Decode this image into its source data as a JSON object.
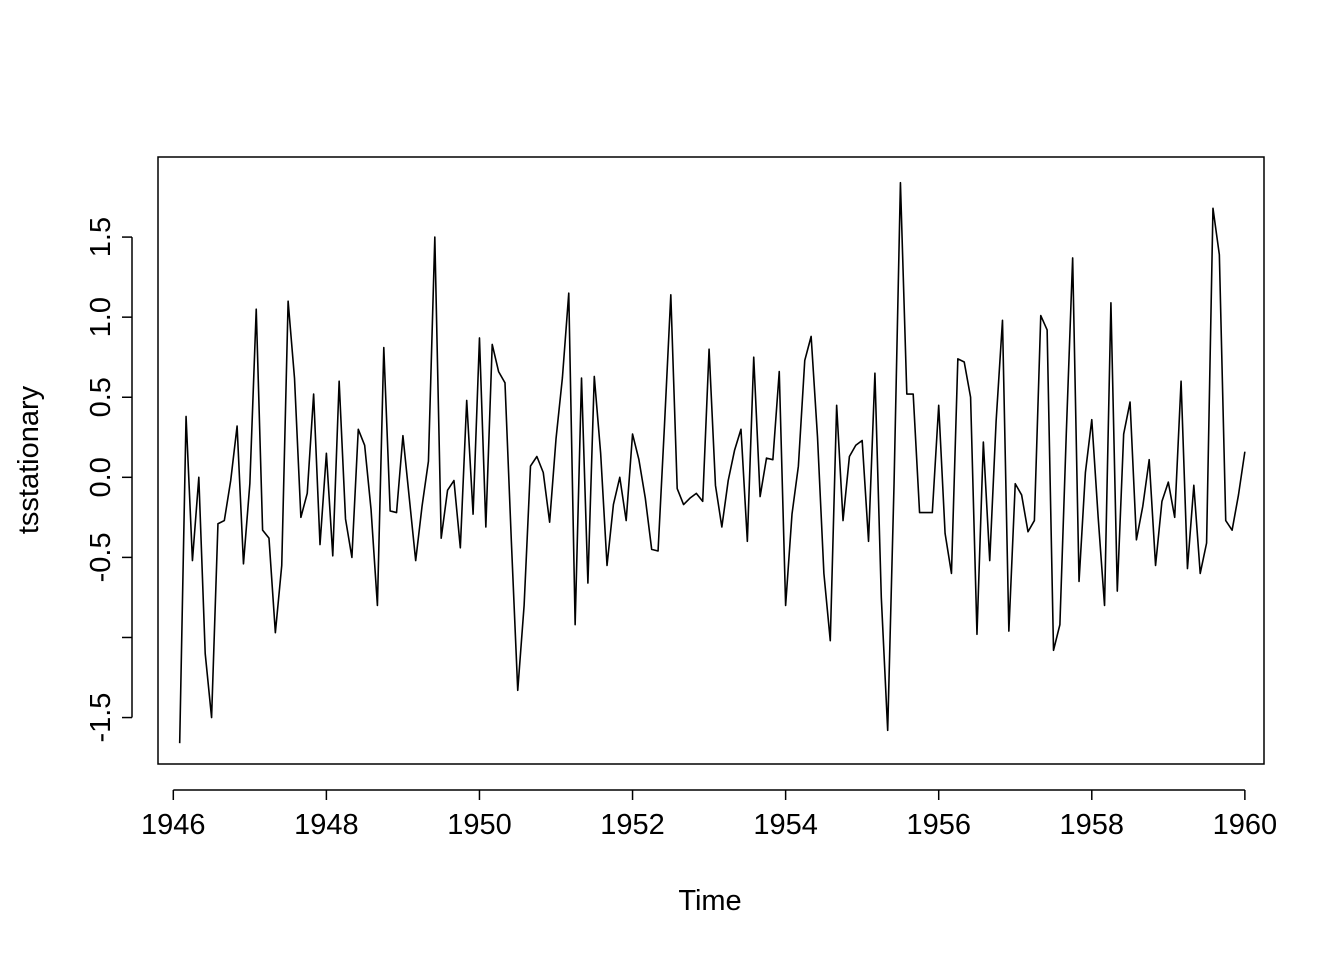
{
  "chart_data": {
    "type": "line",
    "title": "",
    "xlabel": "Time",
    "ylabel": "tsstationary",
    "xlim": [
      1945.8,
      1960.25
    ],
    "ylim": [
      -1.79,
      2.0
    ],
    "x_start": 1946.083333,
    "x_step": 0.083333,
    "x_ticks": [
      1946,
      1948,
      1950,
      1952,
      1954,
      1956,
      1958,
      1960
    ],
    "x_tick_labels": [
      "1946",
      "1948",
      "1950",
      "1952",
      "1954",
      "1956",
      "1958",
      "1960"
    ],
    "y_ticks": [
      -1.5,
      -1.0,
      -0.5,
      0.0,
      0.5,
      1.0,
      1.5
    ],
    "y_tick_labels": [
      "-1.5",
      "",
      "-0.5",
      "0.0",
      "0.5",
      "1.0",
      "1.5"
    ],
    "grid": false,
    "legend": "none",
    "line_color": "#000000",
    "values": [
      -1.66,
      0.38,
      -0.52,
      0.0,
      -1.1,
      -1.5,
      -0.29,
      -0.27,
      -0.02,
      0.32,
      -0.54,
      -0.04,
      1.05,
      -0.33,
      -0.38,
      -0.97,
      -0.55,
      1.1,
      0.62,
      -0.25,
      -0.1,
      0.52,
      -0.42,
      0.15,
      -0.49,
      0.6,
      -0.26,
      -0.5,
      0.3,
      0.2,
      -0.2,
      -0.8,
      0.81,
      -0.21,
      -0.22,
      0.26,
      -0.13,
      -0.52,
      -0.18,
      0.1,
      1.5,
      -0.38,
      -0.08,
      -0.02,
      -0.44,
      0.48,
      -0.23,
      0.87,
      -0.31,
      0.83,
      0.66,
      0.59,
      -0.4,
      -1.33,
      -0.8,
      0.07,
      0.13,
      0.03,
      -0.28,
      0.24,
      0.62,
      1.15,
      -0.92,
      0.62,
      -0.66,
      0.63,
      0.15,
      -0.55,
      -0.17,
      0.0,
      -0.27,
      0.27,
      0.11,
      -0.13,
      -0.45,
      -0.46,
      0.32,
      1.14,
      -0.07,
      -0.17,
      -0.13,
      -0.1,
      -0.15,
      0.8,
      -0.05,
      -0.31,
      -0.02,
      0.17,
      0.3,
      -0.4,
      0.75,
      -0.12,
      0.12,
      0.11,
      0.66,
      -0.8,
      -0.23,
      0.07,
      0.73,
      0.88,
      0.25,
      -0.6,
      -1.02,
      0.45,
      -0.27,
      0.13,
      0.2,
      0.23,
      -0.4,
      0.65,
      -0.75,
      -1.58,
      -0.04,
      1.84,
      0.52,
      0.52,
      -0.22,
      -0.22,
      -0.22,
      0.45,
      -0.35,
      -0.6,
      0.74,
      0.72,
      0.5,
      -0.98,
      0.22,
      -0.52,
      0.35,
      0.98,
      -0.96,
      -0.04,
      -0.11,
      -0.34,
      -0.27,
      1.01,
      0.92,
      -1.08,
      -0.92,
      0.27,
      1.37,
      -0.65,
      0.03,
      0.36,
      -0.25,
      -0.8,
      1.09,
      -0.71,
      0.27,
      0.47,
      -0.39,
      -0.18,
      0.11,
      -0.55,
      -0.15,
      -0.03,
      -0.25,
      0.6,
      -0.57,
      -0.05,
      -0.6,
      -0.41,
      1.68,
      1.39,
      -0.27,
      -0.33,
      -0.11,
      0.16
    ]
  }
}
